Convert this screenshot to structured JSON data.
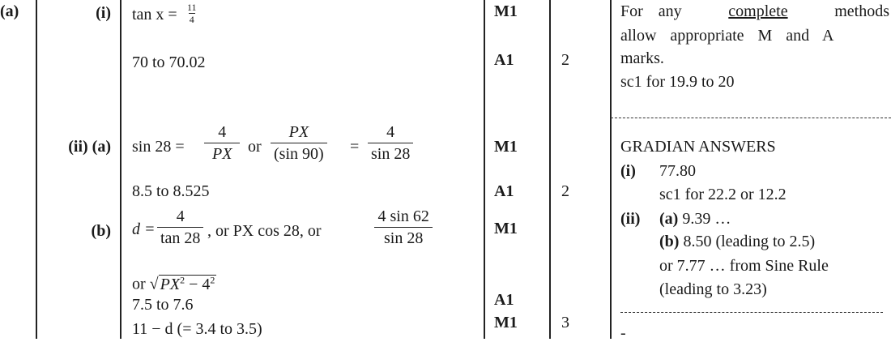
{
  "question": {
    "label": "(a)"
  },
  "parts": {
    "i_label": "(i)",
    "ii_a_label": "(ii) (a)",
    "b_label": "(b)"
  },
  "working": {
    "tan_lhs": "tan x =",
    "tan_num": "11",
    "tan_den": "4",
    "ans_i": "70 to 70.02",
    "sin_lhs": "sin 28 =",
    "f1_num": "4",
    "f1_den": "PX",
    "or1": "or",
    "f2_num": "PX",
    "f2_den": "(sin 90)",
    "eq": "=",
    "f3_num": "4",
    "f3_den": "sin 28",
    "ans_iia": "8.5 to 8.525",
    "d_lhs": "d =",
    "f4_num": "4",
    "f4_den": "tan 28",
    "mid_text": ", or PX cos 28, or",
    "f5_num": "4 sin 62",
    "f5_den": "sin 28",
    "or_sqrt": "or",
    "sqrt_body": "PX",
    "sqrt_rest": " − 4",
    "sq_exp": "2",
    "ans_iib": "7.5 to 7.6",
    "final": "11 − d (= 3.4 to 3.5)"
  },
  "marks": [
    "M1",
    "A1",
    "M1",
    "A1",
    "M1",
    "A1",
    "M1"
  ],
  "totals": [
    "2",
    "2",
    "3"
  ],
  "guidance": {
    "line1_a": "For any",
    "line1_u": "complete",
    "line1_b": "methods",
    "line2": "allow appropriate M and A",
    "line3": "marks.",
    "line4": "sc1 for 19.9 to 20",
    "gradian_title": "GRADIAN ANSWERS",
    "g_i_label": "(i)",
    "g_i_val": "77.80",
    "g_i_sc": "sc1 for 22.2 or 12.2",
    "g_ii_label": "(ii)",
    "g_a_label": "(a)",
    "g_a_val": "9.39 …",
    "g_b_label": "(b)",
    "g_b_val": "8.50 (leading to 2.5)",
    "g_or": "or 7.77 … from Sine Rule",
    "g_lead": "(leading to 3.23)",
    "trail": "-"
  }
}
